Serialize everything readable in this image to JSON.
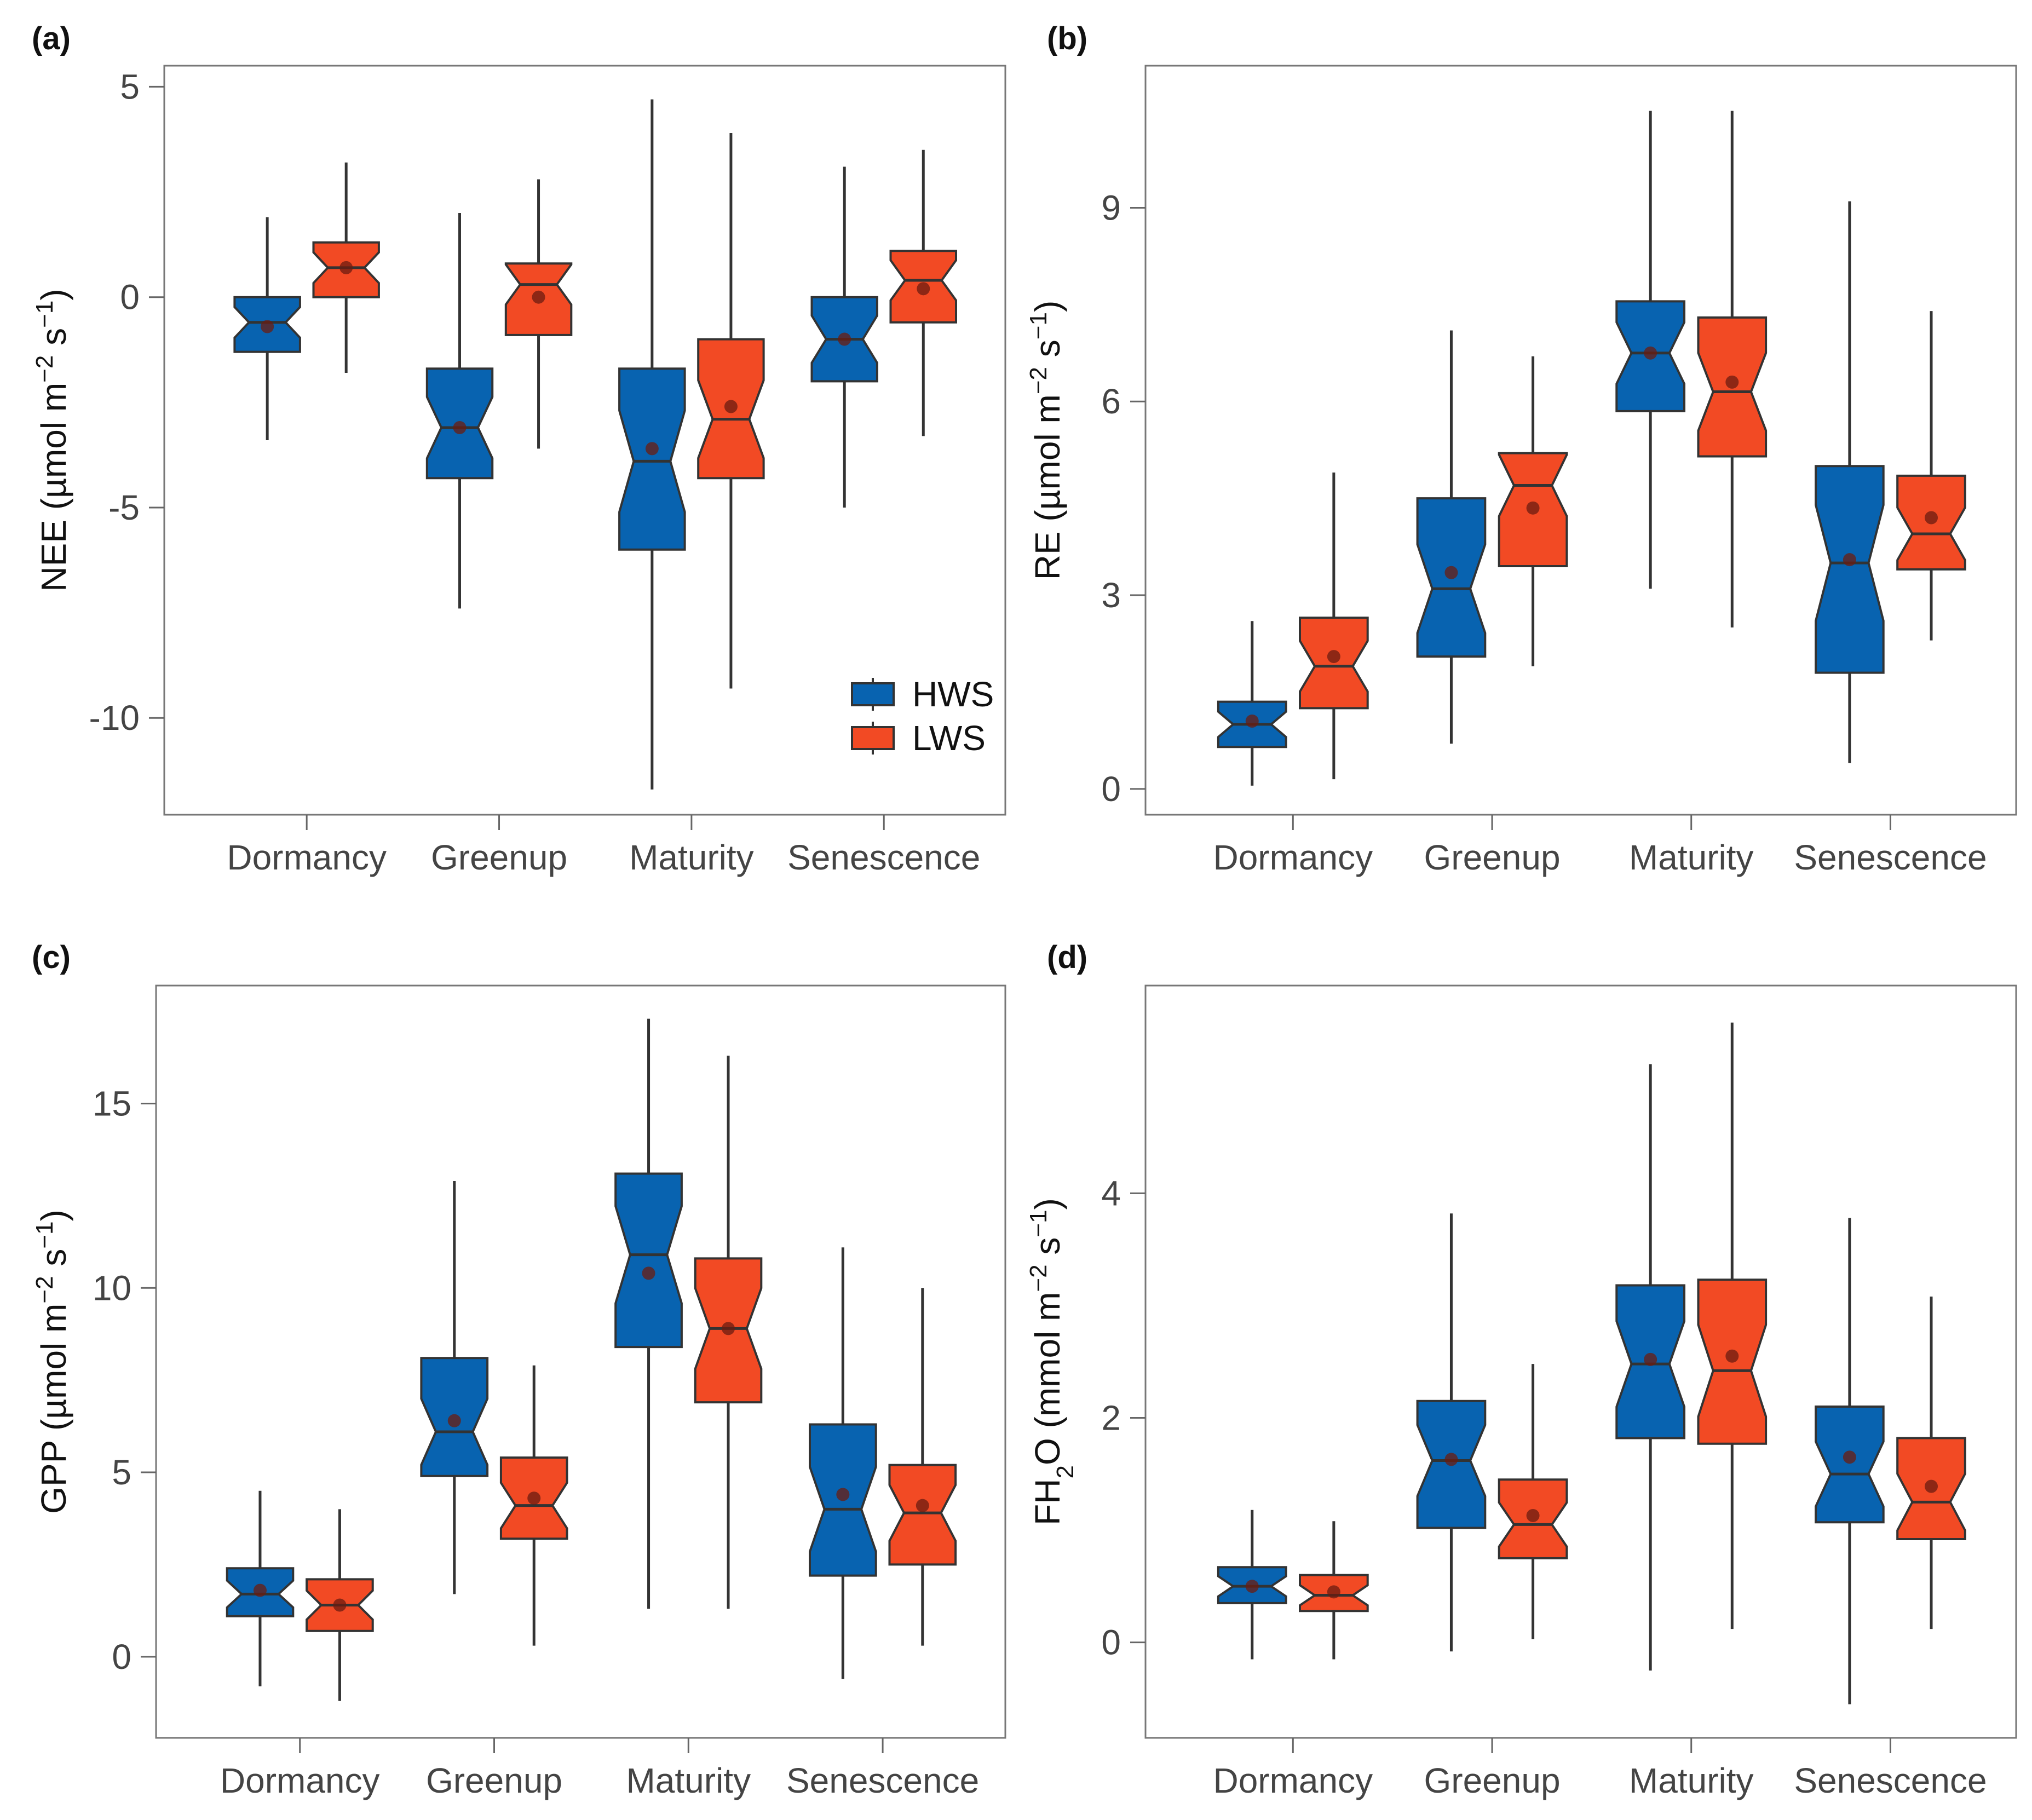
{
  "chart_data": [
    {
      "type": "boxplot",
      "panel_label": "(a)",
      "ylabel": "NEE",
      "ylabel_sub": "",
      "ylabel_unit_open": " (µmol m",
      "ylabel_sup1": "−2",
      "ylabel_mid": " s",
      "ylabel_sup2": "−1",
      "ylabel_close": ")",
      "ylim": [
        -12.3,
        5.5
      ],
      "yticks": [
        5,
        0,
        -5,
        -10
      ],
      "ytick_labels": [
        "5",
        "0",
        "-5",
        "-10"
      ],
      "categories": [
        "Dormancy",
        "Greenup",
        "Maturity",
        "Senescence"
      ],
      "legend": {
        "placement": "bottom-right",
        "entries": [
          "HWS",
          "LWS"
        ]
      },
      "series": [
        {
          "name": "HWS",
          "color": "#0863b0",
          "boxes": [
            {
              "min": -3.4,
              "q1": -1.3,
              "median": -0.6,
              "q3": 0.0,
              "max": 1.9,
              "mean": -0.7
            },
            {
              "min": -7.4,
              "q1": -4.3,
              "median": -3.1,
              "q3": -1.7,
              "max": 2.0,
              "mean": -3.1
            },
            {
              "min": -11.7,
              "q1": -6.0,
              "median": -3.9,
              "q3": -1.7,
              "max": 4.7,
              "mean": -3.6
            },
            {
              "min": -5.0,
              "q1": -2.0,
              "median": -1.0,
              "q3": 0.0,
              "max": 3.1,
              "mean": -1.0
            }
          ]
        },
        {
          "name": "LWS",
          "color": "#f24a24",
          "boxes": [
            {
              "min": -1.8,
              "q1": 0.0,
              "median": 0.7,
              "q3": 1.3,
              "max": 3.2,
              "mean": 0.7
            },
            {
              "min": -3.6,
              "q1": -0.9,
              "median": 0.3,
              "q3": 0.8,
              "max": 2.8,
              "mean": 0.0
            },
            {
              "min": -9.3,
              "q1": -4.3,
              "median": -2.9,
              "q3": -1.0,
              "max": 3.9,
              "mean": -2.6
            },
            {
              "min": -3.3,
              "q1": -0.6,
              "median": 0.4,
              "q3": 1.1,
              "max": 3.5,
              "mean": 0.2
            }
          ]
        }
      ]
    },
    {
      "type": "boxplot",
      "panel_label": "(b)",
      "ylabel": "RE",
      "ylabel_sub": "",
      "ylabel_unit_open": " (µmol m",
      "ylabel_sup1": "−2",
      "ylabel_mid": " s",
      "ylabel_sup2": "−1",
      "ylabel_close": ")",
      "ylim": [
        -0.4,
        11.2
      ],
      "yticks": [
        0,
        3,
        6,
        9
      ],
      "ytick_labels": [
        "0",
        "3",
        "6",
        "9"
      ],
      "categories": [
        "Dormancy",
        "Greenup",
        "Maturity",
        "Senescence"
      ],
      "series": [
        {
          "name": "HWS",
          "color": "#0863b0",
          "boxes": [
            {
              "min": 0.05,
              "q1": 0.65,
              "median": 1.0,
              "q3": 1.35,
              "max": 2.6,
              "mean": 1.05
            },
            {
              "min": 0.7,
              "q1": 2.05,
              "median": 3.1,
              "q3": 4.5,
              "max": 7.1,
              "mean": 3.35
            },
            {
              "min": 3.1,
              "q1": 5.85,
              "median": 6.75,
              "q3": 7.55,
              "max": 10.5,
              "mean": 6.75
            },
            {
              "min": 0.4,
              "q1": 1.8,
              "median": 3.5,
              "q3": 5.0,
              "max": 9.1,
              "mean": 3.55
            }
          ]
        },
        {
          "name": "LWS",
          "color": "#f24a24",
          "boxes": [
            {
              "min": 0.15,
              "q1": 1.25,
              "median": 1.9,
              "q3": 2.65,
              "max": 4.9,
              "mean": 2.05
            },
            {
              "min": 1.9,
              "q1": 3.45,
              "median": 4.7,
              "q3": 5.2,
              "max": 6.7,
              "mean": 4.35
            },
            {
              "min": 2.5,
              "q1": 5.15,
              "median": 6.15,
              "q3": 7.3,
              "max": 10.5,
              "mean": 6.3
            },
            {
              "min": 2.3,
              "q1": 3.4,
              "median": 3.95,
              "q3": 4.85,
              "max": 7.4,
              "mean": 4.2
            }
          ]
        }
      ]
    },
    {
      "type": "boxplot",
      "panel_label": "(c)",
      "ylabel": "GPP",
      "ylabel_sub": "",
      "ylabel_unit_open": " (µmol m",
      "ylabel_sup1": "−2",
      "ylabel_mid": " s",
      "ylabel_sup2": "−1",
      "ylabel_close": ")",
      "ylim": [
        -2.2,
        18.2
      ],
      "yticks": [
        0,
        5,
        10,
        15
      ],
      "ytick_labels": [
        "0",
        "5",
        "10",
        "15"
      ],
      "categories": [
        "Dormancy",
        "Greenup",
        "Maturity",
        "Senescence"
      ],
      "series": [
        {
          "name": "HWS",
          "color": "#0863b0",
          "boxes": [
            {
              "min": -0.8,
              "q1": 1.1,
              "median": 1.7,
              "q3": 2.4,
              "max": 4.5,
              "mean": 1.8
            },
            {
              "min": 1.7,
              "q1": 4.9,
              "median": 6.1,
              "q3": 8.1,
              "max": 12.9,
              "mean": 6.4
            },
            {
              "min": 1.3,
              "q1": 8.4,
              "median": 10.9,
              "q3": 13.1,
              "max": 17.3,
              "mean": 10.4
            },
            {
              "min": -0.6,
              "q1": 2.2,
              "median": 4.0,
              "q3": 6.3,
              "max": 11.1,
              "mean": 4.4
            }
          ]
        },
        {
          "name": "LWS",
          "color": "#f24a24",
          "boxes": [
            {
              "min": -1.2,
              "q1": 0.7,
              "median": 1.4,
              "q3": 2.1,
              "max": 4.0,
              "mean": 1.4
            },
            {
              "min": 0.3,
              "q1": 3.2,
              "median": 4.1,
              "q3": 5.4,
              "max": 7.9,
              "mean": 4.3
            },
            {
              "min": 1.3,
              "q1": 6.9,
              "median": 8.9,
              "q3": 10.8,
              "max": 16.3,
              "mean": 8.9
            },
            {
              "min": 0.3,
              "q1": 2.5,
              "median": 3.9,
              "q3": 5.2,
              "max": 10.0,
              "mean": 4.1
            }
          ]
        }
      ]
    },
    {
      "type": "boxplot",
      "panel_label": "(d)",
      "ylabel": "FH",
      "ylabel_sub": "2",
      "ylabel_unit_open": "O (mmol m",
      "ylabel_sup1": "−2",
      "ylabel_mid": " s",
      "ylabel_sup2": "−1",
      "ylabel_close": ")",
      "ylim": [
        -0.85,
        5.85
      ],
      "yticks": [
        0,
        2,
        4
      ],
      "ytick_labels": [
        "0",
        "2",
        "4"
      ],
      "categories": [
        "Dormancy",
        "Greenup",
        "Maturity",
        "Senescence"
      ],
      "series": [
        {
          "name": "HWS",
          "color": "#0863b0",
          "boxes": [
            {
              "min": -0.15,
              "q1": 0.35,
              "median": 0.5,
              "q3": 0.67,
              "max": 1.18,
              "mean": 0.5
            },
            {
              "min": -0.08,
              "q1": 1.02,
              "median": 1.62,
              "q3": 2.15,
              "max": 3.82,
              "mean": 1.63
            },
            {
              "min": -0.25,
              "q1": 1.82,
              "median": 2.48,
              "q3": 3.18,
              "max": 5.15,
              "mean": 2.52
            },
            {
              "min": -0.55,
              "q1": 1.07,
              "median": 1.5,
              "q3": 2.1,
              "max": 3.78,
              "mean": 1.65
            }
          ]
        },
        {
          "name": "LWS",
          "color": "#f24a24",
          "boxes": [
            {
              "min": -0.15,
              "q1": 0.28,
              "median": 0.42,
              "q3": 0.6,
              "max": 1.08,
              "mean": 0.45
            },
            {
              "min": 0.03,
              "q1": 0.75,
              "median": 1.05,
              "q3": 1.45,
              "max": 2.48,
              "mean": 1.13
            },
            {
              "min": 0.12,
              "q1": 1.77,
              "median": 2.42,
              "q3": 3.23,
              "max": 5.52,
              "mean": 2.55
            },
            {
              "min": 0.12,
              "q1": 0.92,
              "median": 1.25,
              "q3": 1.82,
              "max": 3.08,
              "mean": 1.39
            }
          ]
        }
      ]
    }
  ]
}
